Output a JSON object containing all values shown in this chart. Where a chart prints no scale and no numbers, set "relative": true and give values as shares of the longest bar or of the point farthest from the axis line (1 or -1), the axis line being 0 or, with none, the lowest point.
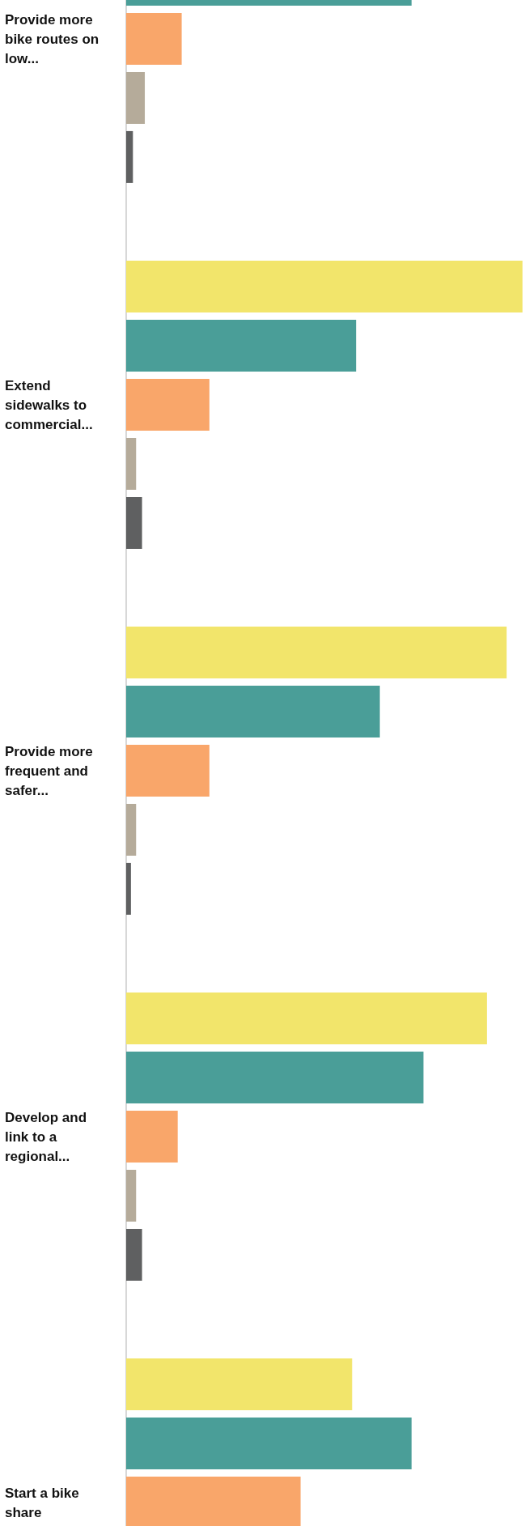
{
  "chart_data": {
    "type": "bar",
    "orientation": "horizontal",
    "relative": true,
    "categories": [
      "Provide more bike routes on low...",
      "Extend sidewalks to commercial...",
      "Provide more frequent and safer...",
      "Develop and link to a regional...",
      "Start a bike share"
    ],
    "series": [
      {
        "color": "#f2e56b",
        "values": [
          null,
          1,
          0.96,
          0.91,
          0.57
        ]
      },
      {
        "color": "#4a9e98",
        "values": [
          0.72,
          0.58,
          0.64,
          0.75,
          0.72
        ]
      },
      {
        "color": "#f9a66a",
        "values": [
          0.14,
          0.21,
          0.21,
          0.13,
          0.44
        ]
      },
      {
        "color": "#b5ab9a",
        "values": [
          0.047,
          0.025,
          0.025,
          0.025,
          null
        ]
      },
      {
        "color": "#5f6061",
        "values": [
          0.017,
          0.04,
          0.012,
          0.04,
          null
        ]
      }
    ]
  }
}
